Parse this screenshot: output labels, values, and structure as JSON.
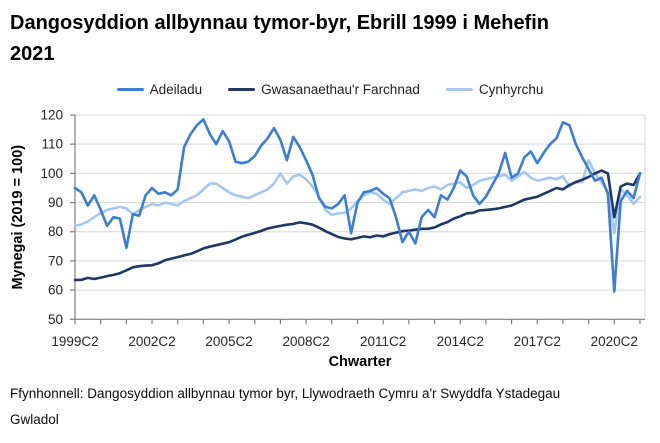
{
  "footer": "Ffynhonnell: Dangosyddion allbynnau tymor byr, Llywodraeth Cymru a'r Swyddfa Ystadegau Gwladol",
  "colors": {
    "adeiladu": "#3B7DD8",
    "gwasanaethau": "#1F3864",
    "cynhyrchu": "#A6C8F0",
    "gridline": "#D9D9D9",
    "axis": "#808080",
    "tick_label": "#262626"
  },
  "chart_data": {
    "type": "line",
    "title": "Dangosyddion allbynnau tymor-byr, Ebrill 1999 i Mehefin 2021",
    "xlabel": "Chwarter",
    "ylabel": "Mynegai (2019 = 100)",
    "ylim": [
      50,
      120
    ],
    "y_ticks": [
      50,
      60,
      70,
      80,
      90,
      100,
      110,
      120
    ],
    "x_tick_labels": [
      "1999C2",
      "2002C2",
      "2005C2",
      "2008C2",
      "2011C2",
      "2014C2",
      "2017C2",
      "2020C2"
    ],
    "x_tick_positions_quarters": [
      0,
      12,
      24,
      36,
      48,
      60,
      72,
      84
    ],
    "x_start": "1999C2",
    "x_end": "2021C2",
    "n_points": 89,
    "grid": true,
    "legend_position": "top",
    "series": [
      {
        "name": "Adeiladu",
        "color": "#3B7DD8",
        "values": [
          95,
          93.5,
          89,
          92.5,
          87.5,
          82,
          85,
          84.5,
          74.5,
          86,
          85.5,
          92.5,
          95,
          93,
          93.5,
          92.5,
          94.5,
          109,
          113.5,
          116.5,
          118.5,
          113.5,
          110,
          114.5,
          111,
          104,
          103.5,
          104,
          106,
          109.5,
          112,
          115.5,
          111.5,
          104.5,
          112.5,
          109,
          104.5,
          99.5,
          91.5,
          88.5,
          88,
          89.5,
          92.5,
          79.5,
          90,
          93.5,
          94,
          95,
          93,
          91.5,
          85,
          76.5,
          80,
          76,
          85,
          87.5,
          85,
          92.5,
          91,
          95,
          101,
          99,
          92.5,
          89.5,
          92,
          96,
          100,
          107,
          98.5,
          100,
          105.5,
          107.5,
          103.5,
          107,
          110,
          112,
          117.5,
          116.5,
          110,
          105.5,
          101.5,
          97.5,
          98.5,
          93,
          59.5,
          90.5,
          94,
          91.5,
          100
        ]
      },
      {
        "name": "Gwasanaethau'r Farchnad",
        "color": "#1F3864",
        "values": [
          63.5,
          63.5,
          64.2,
          63.8,
          64.3,
          64.8,
          65.2,
          65.8,
          66.8,
          67.8,
          68.2,
          68.4,
          68.5,
          69.2,
          70.2,
          70.8,
          71.3,
          71.9,
          72.4,
          73.3,
          74.3,
          74.9,
          75.4,
          75.9,
          76.4,
          77.3,
          78.3,
          79,
          79.6,
          80.3,
          81.1,
          81.6,
          82,
          82.4,
          82.7,
          83.2,
          82.9,
          82.4,
          81.4,
          80.2,
          79.2,
          78.2,
          77.7,
          77.4,
          77.9,
          78.4,
          78.1,
          78.7,
          78.4,
          79.2,
          79.7,
          80.2,
          80.4,
          80.7,
          81,
          81,
          81.5,
          82.5,
          83.3,
          84.5,
          85.3,
          86.3,
          86.5,
          87.3,
          87.5,
          87.7,
          88,
          88.5,
          89,
          90,
          91,
          91.5,
          92,
          93,
          94,
          95,
          94.5,
          96,
          97,
          97.8,
          98.8,
          100,
          101,
          100,
          85,
          95.5,
          96.5,
          96,
          100
        ]
      },
      {
        "name": "Cynhyrchu",
        "color": "#A6C8F0",
        "values": [
          82,
          82.5,
          83.5,
          85,
          86.5,
          87.5,
          88,
          88.5,
          88,
          86,
          87.5,
          88.5,
          89.5,
          89,
          90,
          89.5,
          89,
          90.5,
          91.5,
          92.5,
          94.5,
          96.5,
          96.5,
          95,
          93.5,
          92.5,
          92,
          91.5,
          92.5,
          93.5,
          94.5,
          96.5,
          100,
          96.5,
          99,
          99.5,
          98,
          95.5,
          92,
          87.5,
          85.8,
          86.3,
          86.5,
          88,
          90.5,
          92.5,
          93.5,
          93,
          91,
          89.5,
          91.5,
          93.5,
          94,
          94.5,
          94,
          95,
          95.5,
          94.5,
          96,
          96.5,
          97,
          95,
          96,
          97.5,
          98,
          98.5,
          99,
          99.5,
          97.5,
          99,
          100.5,
          98.5,
          97.5,
          98,
          98.5,
          98,
          99,
          95.5,
          97,
          97,
          104.5,
          100,
          97,
          93.5,
          79.5,
          94.5,
          92.5,
          89.5,
          92
        ]
      }
    ]
  }
}
